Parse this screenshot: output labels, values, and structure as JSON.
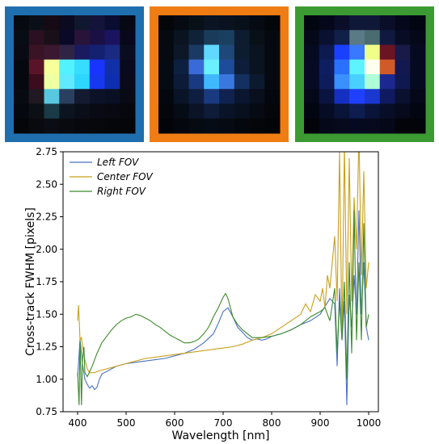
{
  "panels": [
    {
      "name": "left",
      "border_color": "#1f6fae",
      "grid": [
        [
          "#060a10",
          "#0a0f18",
          "#160a14",
          "#0c0a20",
          "#101830",
          "#14143a",
          "#0a0c30",
          "#060814"
        ],
        [
          "#080c14",
          "#2a1020",
          "#181018",
          "#0a0a28",
          "#281438",
          "#1a1044",
          "#1a1460",
          "#08081a"
        ],
        [
          "#0a0a14",
          "#3a1424",
          "#3a1830",
          "#302444",
          "#1a1a60",
          "#142070",
          "#1a2a80",
          "#0a0c20"
        ],
        [
          "#060810",
          "#5a1428",
          "#f6ff9a",
          "#52f2ff",
          "#37ddff",
          "#1a34ff",
          "#1030a8",
          "#0a0a1e"
        ],
        [
          "#060810",
          "#3a0c1c",
          "#eeffa4",
          "#60eaff",
          "#2ed6ff",
          "#1838f0",
          "#0e2eb0",
          "#0a0a1a"
        ],
        [
          "#080a12",
          "#201822",
          "#58c8e0",
          "#2a4060",
          "#141a30",
          "#0c1228",
          "#0a1024",
          "#080a14"
        ],
        [
          "#060810",
          "#0c1014",
          "#1a3a48",
          "#0c1420",
          "#0a0e18",
          "#0a0a14",
          "#080a12",
          "#06080e"
        ],
        [
          "#04060a",
          "#080a10",
          "#0a0e14",
          "#080a10",
          "#06080e",
          "#06080c",
          "#04060a",
          "#04060a"
        ]
      ]
    },
    {
      "name": "center",
      "border_color": "#f07c14",
      "grid": [
        [
          "#04060a",
          "#060a12",
          "#081018",
          "#0a1422",
          "#0a1220",
          "#08101a",
          "#060a12",
          "#04060a"
        ],
        [
          "#060a10",
          "#0a1420",
          "#102238",
          "#1a3c5a",
          "#1a4060",
          "#0e1c30",
          "#081018",
          "#060a10"
        ],
        [
          "#060a10",
          "#0c1828",
          "#1a3a64",
          "#60d8ff",
          "#1e4878",
          "#0e1c30",
          "#0a1420",
          "#060a10"
        ],
        [
          "#060a12",
          "#0e2040",
          "#3a6ad8",
          "#6af0ff",
          "#1e4c9a",
          "#0e1e3a",
          "#0a1420",
          "#060a10"
        ],
        [
          "#060a12",
          "#0c1c38",
          "#183a80",
          "#40b8ff",
          "#3a78e0",
          "#143060",
          "#0c1a30",
          "#060a10"
        ],
        [
          "#04080e",
          "#0a1428",
          "#0e1e40",
          "#1a3a80",
          "#102250",
          "#0a1630",
          "#08101e",
          "#04080e"
        ],
        [
          "#04060a",
          "#060c16",
          "#0a1426",
          "#0e1c3a",
          "#0a1428",
          "#08101e",
          "#060a12",
          "#04060a"
        ],
        [
          "#020408",
          "#04080e",
          "#060a12",
          "#060c16",
          "#060a12",
          "#04080e",
          "#04060a",
          "#020408"
        ]
      ]
    },
    {
      "name": "right",
      "border_color": "#3c9a32",
      "grid": [
        [
          "#020610",
          "#04081a",
          "#0a0e28",
          "#101838",
          "#101838",
          "#0a0e28",
          "#04081a",
          "#020610"
        ],
        [
          "#040818",
          "#0a1030",
          "#102048",
          "#5a7a86",
          "#4a6c70",
          "#101a40",
          "#080c24",
          "#040818"
        ],
        [
          "#060a20",
          "#0c1a50",
          "#1a40ff",
          "#3a78ff",
          "#f0ff88",
          "#6a1424",
          "#1a1a48",
          "#060a20"
        ],
        [
          "#060a24",
          "#0e1e60",
          "#2a70ff",
          "#5ef4ff",
          "#ffffee",
          "#d05a28",
          "#141850",
          "#060a20"
        ],
        [
          "#060a24",
          "#0e1c5c",
          "#3a90ff",
          "#4ad0ff",
          "#aeffd8",
          "#1c2890",
          "#101850",
          "#060a20"
        ],
        [
          "#040818",
          "#0a1440",
          "#1430c0",
          "#2040ff",
          "#1a38d0",
          "#101a60",
          "#0a1030",
          "#040818"
        ],
        [
          "#020610",
          "#060c24",
          "#0a1438",
          "#0e1c50",
          "#0a1438",
          "#080e28",
          "#060a1a",
          "#020610"
        ],
        [
          "#02040a",
          "#040818",
          "#060a1c",
          "#060a20",
          "#060a1c",
          "#040818",
          "#02040a",
          "#02040a"
        ]
      ]
    }
  ],
  "chart_data": {
    "type": "line",
    "title": "",
    "xlabel": "Wavelength [nm]",
    "ylabel": "Cross-track FWHM [pixels]",
    "xlim": [
      370,
      1020
    ],
    "ylim": [
      0.75,
      2.75
    ],
    "xticks": [
      400,
      500,
      600,
      700,
      800,
      900,
      1000
    ],
    "xtick_labels": [
      "400",
      "500",
      "600",
      "700",
      "800",
      "900",
      "1000"
    ],
    "yticks": [
      0.75,
      1.0,
      1.25,
      1.5,
      1.75,
      2.0,
      2.25,
      2.5,
      2.75
    ],
    "ytick_labels": [
      "0.75",
      "1.00",
      "1.25",
      "1.50",
      "1.75",
      "2.00",
      "2.25",
      "2.50",
      "2.75"
    ],
    "grid": false,
    "legend": "upper-left",
    "series": [
      {
        "name": "Left FOV",
        "color": "#4a72c4",
        "x": [
          400,
          405,
          410,
          415,
          420,
          425,
          430,
          435,
          440,
          445,
          450,
          460,
          470,
          480,
          490,
          500,
          520,
          540,
          560,
          580,
          600,
          620,
          640,
          660,
          680,
          690,
          700,
          710,
          720,
          730,
          740,
          750,
          760,
          770,
          780,
          790,
          800,
          820,
          840,
          860,
          880,
          900,
          910,
          920,
          930,
          935,
          940,
          945,
          950,
          955,
          960,
          965,
          970,
          975,
          980,
          985,
          990,
          995,
          1000
        ],
        "y": [
          1.02,
          1.3,
          1.12,
          1.0,
          0.96,
          0.93,
          0.95,
          0.92,
          0.94,
          1.0,
          1.04,
          1.06,
          1.08,
          1.1,
          1.11,
          1.12,
          1.13,
          1.14,
          1.15,
          1.16,
          1.18,
          1.2,
          1.23,
          1.28,
          1.35,
          1.43,
          1.52,
          1.55,
          1.48,
          1.4,
          1.36,
          1.32,
          1.3,
          1.31,
          1.3,
          1.31,
          1.33,
          1.35,
          1.38,
          1.42,
          1.45,
          1.5,
          1.56,
          1.62,
          1.58,
          1.1,
          1.7,
          1.3,
          1.6,
          0.8,
          1.65,
          1.4,
          1.8,
          1.5,
          2.3,
          1.5,
          1.9,
          1.4,
          1.3
        ]
      },
      {
        "name": "Center FOV",
        "color": "#c9a01a",
        "x": [
          400,
          402,
          405,
          408,
          410,
          415,
          420,
          425,
          430,
          435,
          440,
          450,
          460,
          470,
          480,
          490,
          500,
          520,
          540,
          560,
          580,
          600,
          620,
          640,
          660,
          680,
          700,
          720,
          740,
          760,
          780,
          800,
          820,
          840,
          860,
          870,
          880,
          890,
          900,
          905,
          910,
          915,
          920,
          925,
          930,
          935,
          940,
          945,
          950,
          955,
          960,
          965,
          970,
          975,
          980,
          985,
          990,
          995,
          1000
        ],
        "y": [
          1.45,
          1.57,
          1.3,
          1.32,
          1.25,
          1.15,
          1.08,
          1.05,
          1.05,
          1.05,
          1.06,
          1.07,
          1.08,
          1.09,
          1.1,
          1.11,
          1.12,
          1.14,
          1.16,
          1.17,
          1.18,
          1.19,
          1.2,
          1.21,
          1.22,
          1.23,
          1.24,
          1.25,
          1.27,
          1.3,
          1.32,
          1.35,
          1.4,
          1.45,
          1.5,
          1.58,
          1.52,
          1.65,
          1.6,
          1.7,
          1.55,
          1.8,
          1.7,
          1.9,
          2.1,
          1.6,
          2.75,
          1.3,
          2.8,
          1.5,
          2.7,
          1.6,
          2.4,
          2.0,
          2.9,
          1.8,
          2.6,
          1.7,
          1.9
        ]
      },
      {
        "name": "Right FOV",
        "color": "#3c8a2a",
        "x": [
          400,
          403,
          405,
          408,
          410,
          413,
          415,
          420,
          425,
          430,
          440,
          450,
          460,
          470,
          480,
          490,
          500,
          510,
          520,
          530,
          540,
          550,
          560,
          570,
          580,
          590,
          600,
          610,
          620,
          630,
          640,
          650,
          660,
          670,
          680,
          690,
          700,
          705,
          710,
          715,
          720,
          730,
          740,
          750,
          760,
          780,
          800,
          820,
          840,
          860,
          880,
          900,
          910,
          920,
          930,
          935,
          940,
          945,
          950,
          955,
          960,
          965,
          970,
          975,
          980,
          985,
          990,
          995,
          1000
        ],
        "y": [
          1.05,
          0.8,
          1.3,
          0.8,
          1.15,
          1.25,
          1.05,
          1.02,
          1.06,
          1.1,
          1.2,
          1.28,
          1.33,
          1.38,
          1.42,
          1.45,
          1.47,
          1.48,
          1.5,
          1.49,
          1.47,
          1.45,
          1.42,
          1.4,
          1.37,
          1.34,
          1.32,
          1.3,
          1.28,
          1.28,
          1.29,
          1.31,
          1.35,
          1.4,
          1.48,
          1.55,
          1.63,
          1.66,
          1.62,
          1.55,
          1.48,
          1.42,
          1.38,
          1.35,
          1.32,
          1.32,
          1.33,
          1.35,
          1.38,
          1.42,
          1.48,
          1.52,
          1.55,
          1.45,
          1.7,
          1.2,
          1.6,
          1.3,
          1.75,
          1.0,
          1.9,
          1.2,
          2.3,
          1.3,
          1.9,
          1.3,
          2.2,
          1.4,
          1.5
        ]
      }
    ]
  }
}
